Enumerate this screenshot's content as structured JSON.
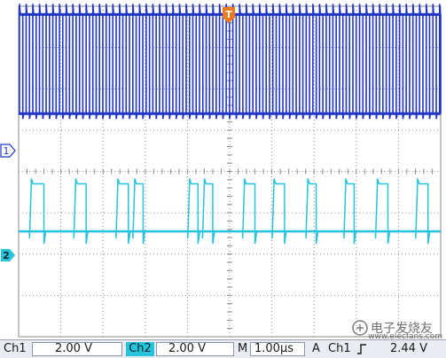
{
  "colors": {
    "background": "#ffffff",
    "grid": "#8a8a8a",
    "trigger_marker": "#f07a1a",
    "ch1": "#1f35c9",
    "ch2": "#25c4db",
    "status_bg": "#e9ecf3"
  },
  "markers": {
    "trigger": "T",
    "ch1": "1",
    "ch2": "2"
  },
  "status": {
    "ch1_label": "Ch1",
    "ch1_scale": "2.00 V",
    "ch2_label": "Ch2",
    "ch2_scale": "2.00 V",
    "timebase_label": "M",
    "timebase_value": "1.00μs",
    "trigger_label": "A",
    "trigger_source": "Ch1",
    "trigger_slope_icon": "rising-edge-icon",
    "trigger_level": "2.44 V"
  },
  "watermark": {
    "text": "电子发烧友",
    "url": "www.elecfans.com"
  },
  "chart_data": {
    "type": "line",
    "grid": {
      "divisions_x": 10,
      "divisions_y": 8
    },
    "series": [
      {
        "name": "Ch1",
        "kind": "clock",
        "low_div": -0.1,
        "high_div": 2.3,
        "period_div": 0.158,
        "duty": 0.5
      },
      {
        "name": "Ch2",
        "kind": "data",
        "low_div": 0.0,
        "high_div": 1.15,
        "pulses_div": [
          [
            0.3,
            0.6
          ],
          [
            1.35,
            1.6
          ],
          [
            2.35,
            2.6
          ],
          [
            2.75,
            2.95
          ],
          [
            4.05,
            4.25
          ],
          [
            4.4,
            4.6
          ],
          [
            5.35,
            5.6
          ],
          [
            6.05,
            6.3
          ],
          [
            6.85,
            7.05
          ],
          [
            7.75,
            7.95
          ],
          [
            8.5,
            8.75
          ],
          [
            9.45,
            9.7
          ]
        ]
      }
    ]
  }
}
